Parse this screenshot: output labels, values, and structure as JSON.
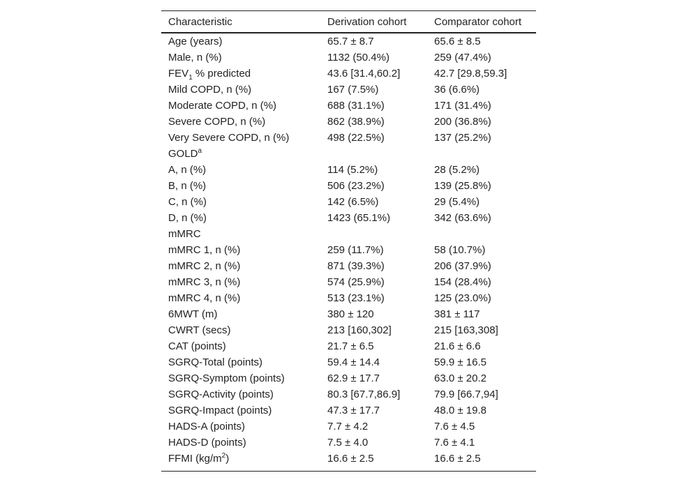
{
  "table": {
    "header": [
      "Characteristic",
      "Derivation cohort",
      "Comparator cohort"
    ],
    "rows": [
      [
        "Age (years)",
        "65.7 ± 8.7",
        "65.6 ± 8.5"
      ],
      [
        "Male, n (%)",
        "1132 (50.4%)",
        "259 (47.4%)"
      ],
      [
        {
          "base": "FEV",
          "sub": "1",
          "tail": " % predicted"
        },
        "43.6 [31.4,60.2]",
        "42.7 [29.8,59.3]"
      ],
      [
        "Mild COPD, n (%)",
        "167 (7.5%)",
        "36 (6.6%)"
      ],
      [
        "Moderate COPD, n (%)",
        "688 (31.1%)",
        "171 (31.4%)"
      ],
      [
        "Severe COPD, n (%)",
        "862 (38.9%)",
        "200 (36.8%)"
      ],
      [
        "Very Severe COPD, n (%)",
        "498 (22.5%)",
        "137 (25.2%)"
      ],
      [
        {
          "base": "GOLD",
          "sup": "a"
        }
      ],
      [
        "A, n (%)",
        "114 (5.2%)",
        "28 (5.2%)"
      ],
      [
        "B, n (%)",
        "506 (23.2%)",
        "139 (25.8%)"
      ],
      [
        "C, n (%)",
        "142 (6.5%)",
        "29 (5.4%)"
      ],
      [
        "D, n (%)",
        "1423 (65.1%)",
        "342 (63.6%)"
      ],
      [
        "mMRC"
      ],
      [
        "mMRC 1, n (%)",
        "259 (11.7%)",
        "58 (10.7%)"
      ],
      [
        "mMRC 2, n (%)",
        "871 (39.3%)",
        "206 (37.9%)"
      ],
      [
        "mMRC 3, n (%)",
        "574 (25.9%)",
        "154 (28.4%)"
      ],
      [
        "mMRC 4, n (%)",
        "513 (23.1%)",
        "125 (23.0%)"
      ],
      [
        "6MWT (m)",
        "380 ± 120",
        "381 ± 117"
      ],
      [
        "CWRT (secs)",
        "213 [160,302]",
        "215 [163,308]"
      ],
      [
        "CAT (points)",
        "21.7 ± 6.5",
        "21.6 ± 6.6"
      ],
      [
        "SGRQ-Total (points)",
        "59.4 ± 14.4",
        "59.9 ± 16.5"
      ],
      [
        "SGRQ-Symptom (points)",
        "62.9 ± 17.7",
        "63.0 ± 20.2"
      ],
      [
        "SGRQ-Activity (points)",
        "80.3 [67.7,86.9]",
        "79.9 [66.7,94]"
      ],
      [
        "SGRQ-Impact (points)",
        "47.3 ± 17.7",
        "48.0 ± 19.8"
      ],
      [
        "HADS-A (points)",
        "7.7 ± 4.2",
        "7.6 ± 4.5"
      ],
      [
        "HADS-D (points)",
        "7.5 ± 4.0",
        "7.6 ± 4.1"
      ],
      [
        {
          "base": "FFMI (kg/m",
          "sup": "2",
          "tail": ")"
        },
        "16.6 ± 2.5",
        "16.6 ± 2.5"
      ]
    ]
  }
}
